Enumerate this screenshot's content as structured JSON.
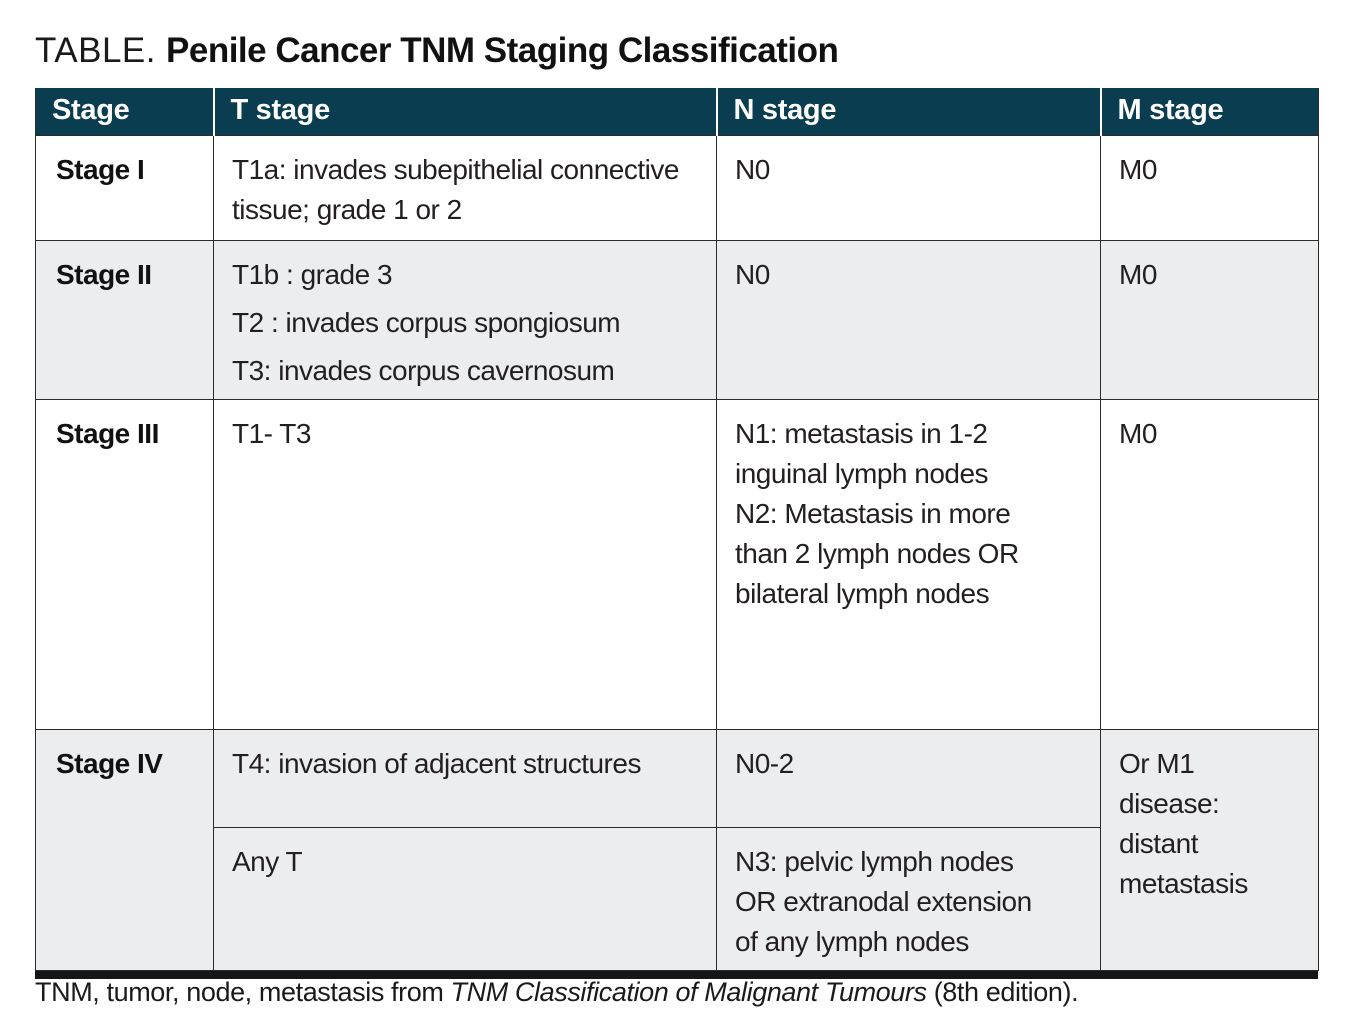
{
  "title": {
    "prefix": "TABLE.",
    "main": "Penile Cancer TNM Staging Classification"
  },
  "table": {
    "headers": [
      "Stage",
      "T stage",
      "N stage",
      "M stage"
    ],
    "rows": [
      {
        "stage": "Stage I",
        "t": [
          "T1a: invades subepithelial connective tissue; grade 1 or 2"
        ],
        "n": [
          "N0"
        ],
        "m": "M0"
      },
      {
        "stage": "Stage II",
        "t": [
          "T1b : grade 3",
          "T2 : invades corpus spongiosum",
          "T3: invades corpus cavernosum"
        ],
        "n": [
          "N0"
        ],
        "m": "M0"
      },
      {
        "stage": "Stage III",
        "t": [
          "T1- T3"
        ],
        "n": [
          "N1: metastasis in 1-2 inguinal lymph nodes",
          "N2: Metastasis in more than 2 lymph nodes OR bilateral lymph nodes"
        ],
        "m": "M0"
      },
      {
        "stage": "Stage IV",
        "t_sub": [
          "T4: invasion of adjacent structures",
          "Any T"
        ],
        "n_sub": [
          "N0-2",
          "N3: pelvic lymph nodes OR extranodal extension of any lymph nodes"
        ],
        "m": "Or M1 disease: distant metastasis"
      }
    ]
  },
  "footnote": {
    "text_before": "TNM, tumor, node, metastasis from ",
    "source_italic": "TNM Classification of Malignant Tumours",
    "text_after": " (8th edition)."
  },
  "colors": {
    "header_bg": "#0A3D50",
    "header_text": "#FFFFFF",
    "row_bg": "#FFFFFF",
    "row_alt_bg": "#ECEDEF",
    "border": "#2B2B2B",
    "bottom_bar": "#161616",
    "text": "#231F20"
  }
}
